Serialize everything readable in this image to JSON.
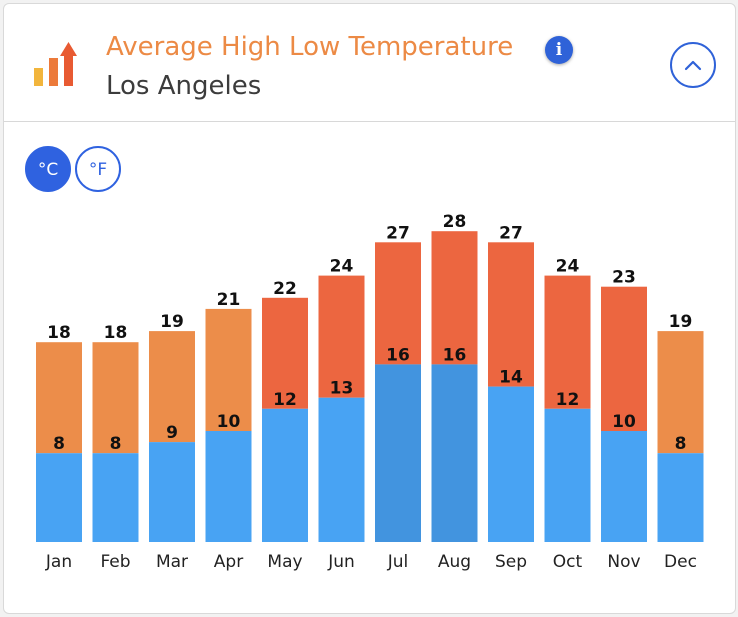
{
  "header": {
    "title": "Average High Low Temperature",
    "subtitle": "Los Angeles",
    "info_icon": "info-icon",
    "collapse_icon": "chevron-up-icon",
    "logo_icon": "bar-chart-up-arrow-icon"
  },
  "units": {
    "celsius_label": "°C",
    "fahrenheit_label": "°F",
    "selected": "°C"
  },
  "colors": {
    "accent": "#2f62e0",
    "title": "#ec8a45",
    "low_bar": "#48a3f3",
    "low_bar_summer": "#4294df",
    "high_warm": "#ec8d4a",
    "high_hot": "#ec6640"
  },
  "chart_data": {
    "type": "bar",
    "title": "Average High Low Temperature",
    "subtitle": "Los Angeles",
    "unit": "°C",
    "categories": [
      "Jan",
      "Feb",
      "Mar",
      "Apr",
      "May",
      "Jun",
      "Jul",
      "Aug",
      "Sep",
      "Oct",
      "Nov",
      "Dec"
    ],
    "series": [
      {
        "name": "High",
        "values": [
          18,
          18,
          19,
          21,
          22,
          24,
          27,
          28,
          27,
          24,
          23,
          19
        ]
      },
      {
        "name": "Low",
        "values": [
          8,
          8,
          9,
          10,
          12,
          13,
          16,
          16,
          14,
          12,
          10,
          8
        ]
      }
    ],
    "xlabel": "",
    "ylabel": "",
    "ylim": [
      0,
      30
    ],
    "grid": false,
    "legend": "none"
  }
}
